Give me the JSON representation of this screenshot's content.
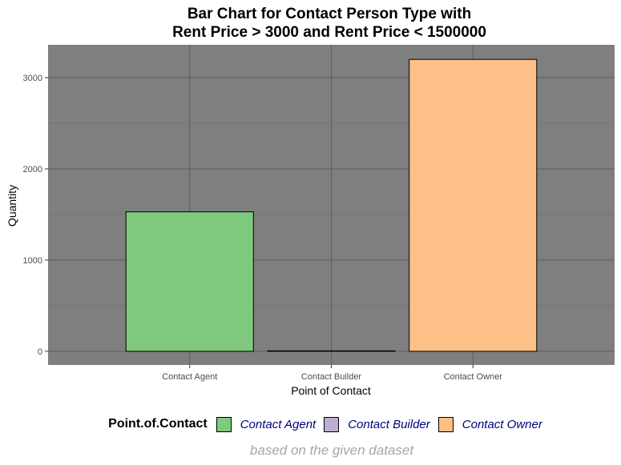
{
  "chart_data": {
    "type": "bar",
    "title_lines": [
      "Bar Chart for Contact Person Type with",
      "Rent Price > 3000 and Rent Price < 1500000"
    ],
    "xlabel": "Point of Contact",
    "ylabel": "Quantity",
    "categories": [
      "Contact Agent",
      "Contact Builder",
      "Contact Owner"
    ],
    "values": [
      1529,
      5,
      3200
    ],
    "colors": [
      "#7fc97f",
      "#beaed4",
      "#fdc086"
    ],
    "ylim": [
      -150,
      3360
    ],
    "yticks": [
      0,
      1000,
      2000,
      3000
    ],
    "grid": true,
    "panel_background": "#7f7f7f",
    "legend": {
      "title": "Point.of.Contact",
      "position": "bottom",
      "entries": [
        "Contact Agent",
        "Contact Builder",
        "Contact Owner"
      ]
    },
    "caption": "based on the given dataset"
  }
}
